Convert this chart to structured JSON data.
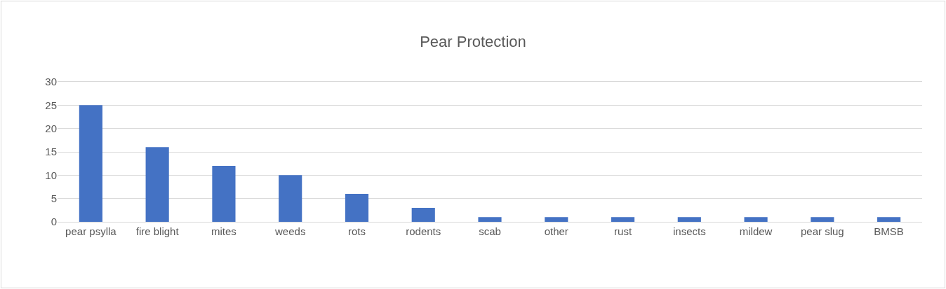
{
  "chart_data": {
    "type": "bar",
    "title": "Pear Protection",
    "categories": [
      "pear psylla",
      "fire blight",
      "mites",
      "weeds",
      "rots",
      "rodents",
      "scab",
      "other",
      "rust",
      "insects",
      "mildew",
      "pear slug",
      "BMSB"
    ],
    "values": [
      25,
      16,
      12,
      10,
      6,
      3,
      1,
      1,
      1,
      1,
      1,
      1,
      1
    ],
    "color": "#4472c4",
    "ylim": [
      0,
      30
    ],
    "yticks": [
      0,
      5,
      10,
      15,
      20,
      25,
      30
    ],
    "grid": "y"
  }
}
